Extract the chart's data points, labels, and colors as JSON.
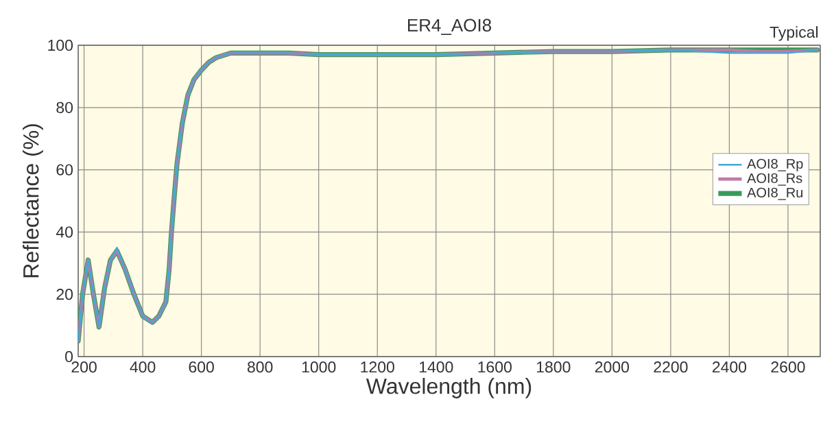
{
  "chart_data": {
    "type": "line",
    "title": "ER4_AOI8",
    "xlabel": "Wavelength (nm)",
    "ylabel": "Reflectance (%)",
    "annotations": [
      "Typical"
    ],
    "x": [
      180,
      195,
      214,
      232,
      251,
      270,
      290,
      312,
      340,
      370,
      400,
      433,
      455,
      479,
      490,
      498,
      508,
      517,
      535,
      554,
      575,
      600,
      625,
      650,
      700,
      800,
      900,
      1000,
      1200,
      1400,
      1600,
      1800,
      2000,
      2200,
      2400,
      2500,
      2600,
      2700
    ],
    "series": [
      {
        "name": "AOI8_Rp",
        "color": "#3fa9d8",
        "values": [
          5,
          20,
          31,
          20,
          9.5,
          22,
          31,
          35,
          28,
          20,
          13,
          11,
          13,
          17.6,
          28,
          40,
          52,
          62,
          75,
          84,
          89,
          92,
          94.5,
          96,
          97.5,
          97.5,
          97.5,
          97,
          97,
          97,
          97.5,
          98,
          98,
          98.5,
          97.5,
          97.5,
          97.5,
          98.5
        ]
      },
      {
        "name": "AOI8_Rs",
        "color": "#c07aa8",
        "values": [
          5,
          20,
          31,
          20,
          9.5,
          22,
          31,
          34,
          28,
          20,
          13,
          11,
          13,
          17.6,
          28,
          40,
          52,
          62,
          75,
          84,
          89,
          92,
          94.5,
          96,
          97.5,
          97.5,
          97.5,
          97,
          97,
          97,
          97.5,
          98,
          98,
          98.5,
          98.5,
          98,
          98,
          98.5
        ]
      },
      {
        "name": "AOI8_Ru",
        "color": "#3a9a5a",
        "values": [
          5,
          20,
          31,
          20,
          9.5,
          22,
          31,
          34,
          28,
          20,
          13,
          11,
          13,
          17.6,
          28,
          40,
          52,
          62,
          75,
          84,
          89,
          92,
          94.5,
          96,
          97.5,
          97.5,
          97.5,
          97,
          97,
          97,
          97.5,
          98,
          98,
          98.5,
          98.5,
          98.5,
          98.5,
          98.5
        ]
      }
    ],
    "xlim": [
      180,
      2710
    ],
    "ylim": [
      0,
      100
    ],
    "xticks": [
      200,
      400,
      600,
      800,
      1000,
      1200,
      1400,
      1600,
      1800,
      2000,
      2200,
      2400,
      2600
    ],
    "yticks": [
      0,
      20,
      40,
      60,
      80,
      100
    ],
    "grid": true,
    "legend": "right",
    "marker": "none",
    "line_style": "solid"
  }
}
